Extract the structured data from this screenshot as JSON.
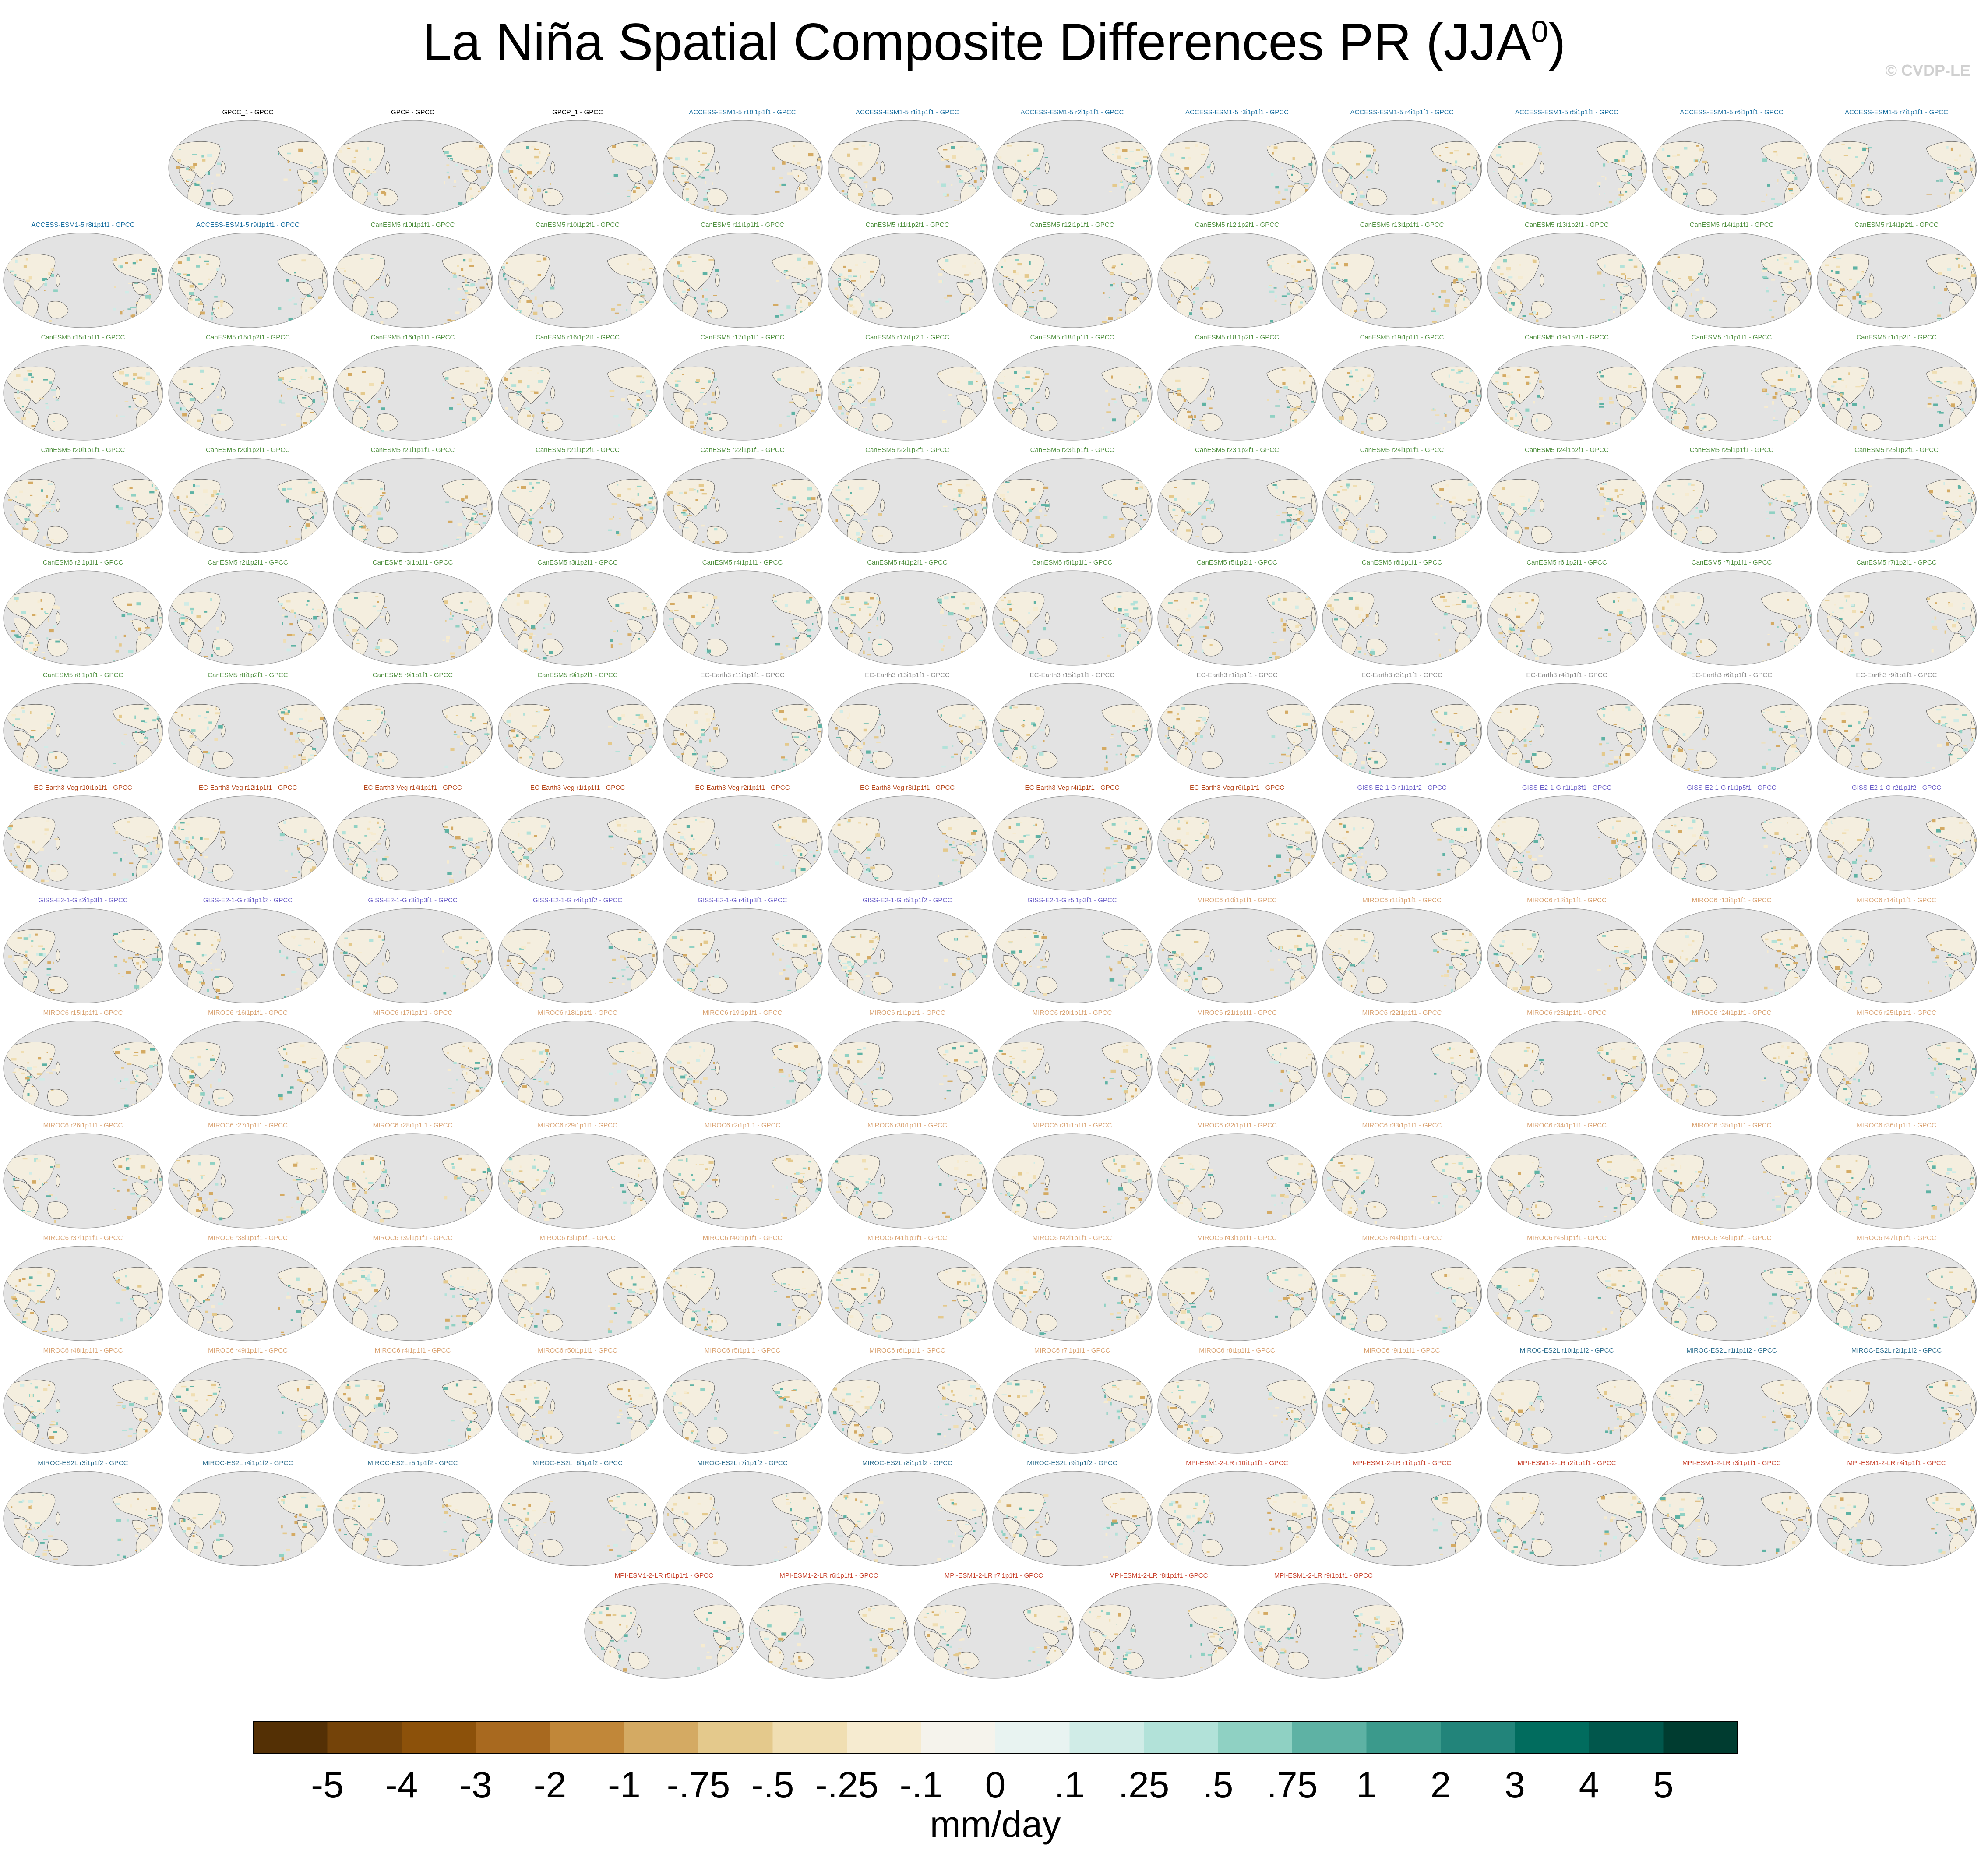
{
  "title": {
    "main": "La Niña Spatial Composite Differences PR (JJA",
    "sup": "0",
    "close": ")"
  },
  "copyright": "© CVDP-LE",
  "chart_data": {
    "type": "heatmap",
    "title": "La Niña Spatial Composite Differences PR (JJA0)",
    "colorbar": {
      "unit": "mm/day",
      "ticks": [
        "-5",
        "-4",
        "-3",
        "-2",
        "-1",
        "-.75",
        "-.5",
        "-.25",
        "-.1",
        "0",
        ".1",
        ".25",
        ".5",
        ".75",
        "1",
        "2",
        "3",
        "4",
        "5"
      ],
      "colors": [
        "#543005",
        "#744309",
        "#8c510a",
        "#a8691f",
        "#c18739",
        "#d4aa63",
        "#e4c98c",
        "#f0deb2",
        "#f6ebd0",
        "#f5f3ec",
        "#e8f3f1",
        "#d0ece7",
        "#b2e2d9",
        "#8fd1c3",
        "#5eb2a4",
        "#3b9a8c",
        "#22847a",
        "#016c5e",
        "#01574c",
        "#003c30"
      ]
    },
    "panel_groups": [
      {
        "model": "Obs",
        "color": "#000000",
        "titles": [
          "GPCC_1 - GPCC",
          "GPCP - GPCC",
          "GPCP_1 - GPCC"
        ]
      },
      {
        "model": "ACCESS-ESM1-5",
        "color": "#1a6fa0",
        "titles": [
          "ACCESS-ESM1-5 r10i1p1f1 - GPCC",
          "ACCESS-ESM1-5 r1i1p1f1 - GPCC",
          "ACCESS-ESM1-5 r2i1p1f1 - GPCC",
          "ACCESS-ESM1-5 r3i1p1f1 - GPCC",
          "ACCESS-ESM1-5 r4i1p1f1 - GPCC",
          "ACCESS-ESM1-5 r5i1p1f1 - GPCC",
          "ACCESS-ESM1-5 r6i1p1f1 - GPCC",
          "ACCESS-ESM1-5 r7i1p1f1 - GPCC",
          "ACCESS-ESM1-5 r8i1p1f1 - GPCC",
          "ACCESS-ESM1-5 r9i1p1f1 - GPCC"
        ]
      },
      {
        "model": "CanESM5",
        "color": "#4f8f3f",
        "titles": [
          "CanESM5 r10i1p1f1 - GPCC",
          "CanESM5 r10i1p2f1 - GPCC",
          "CanESM5 r11i1p1f1 - GPCC",
          "CanESM5 r11i1p2f1 - GPCC",
          "CanESM5 r12i1p1f1 - GPCC",
          "CanESM5 r12i1p2f1 - GPCC",
          "CanESM5 r13i1p1f1 - GPCC",
          "CanESM5 r13i1p2f1 - GPCC",
          "CanESM5 r14i1p1f1 - GPCC",
          "CanESM5 r14i1p2f1 - GPCC",
          "CanESM5 r15i1p1f1 - GPCC",
          "CanESM5 r15i1p2f1 - GPCC",
          "CanESM5 r16i1p1f1 - GPCC",
          "CanESM5 r16i1p2f1 - GPCC",
          "CanESM5 r17i1p1f1 - GPCC",
          "CanESM5 r17i1p2f1 - GPCC",
          "CanESM5 r18i1p1f1 - GPCC",
          "CanESM5 r18i1p2f1 - GPCC",
          "CanESM5 r19i1p1f1 - GPCC",
          "CanESM5 r19i1p2f1 - GPCC",
          "CanESM5 r1i1p1f1 - GPCC",
          "CanESM5 r1i1p2f1 - GPCC",
          "CanESM5 r20i1p1f1 - GPCC",
          "CanESM5 r20i1p2f1 - GPCC",
          "CanESM5 r21i1p1f1 - GPCC",
          "CanESM5 r21i1p2f1 - GPCC",
          "CanESM5 r22i1p1f1 - GPCC",
          "CanESM5 r22i1p2f1 - GPCC",
          "CanESM5 r23i1p1f1 - GPCC",
          "CanESM5 r23i1p2f1 - GPCC",
          "CanESM5 r24i1p1f1 - GPCC",
          "CanESM5 r24i1p2f1 - GPCC",
          "CanESM5 r25i1p1f1 - GPCC",
          "CanESM5 r25i1p2f1 - GPCC",
          "CanESM5 r2i1p1f1 - GPCC",
          "CanESM5 r2i1p2f1 - GPCC",
          "CanESM5 r3i1p1f1 - GPCC",
          "CanESM5 r3i1p2f1 - GPCC",
          "CanESM5 r4i1p1f1 - GPCC",
          "CanESM5 r4i1p2f1 - GPCC",
          "CanESM5 r5i1p1f1 - GPCC",
          "CanESM5 r5i1p2f1 - GPCC",
          "CanESM5 r6i1p1f1 - GPCC",
          "CanESM5 r6i1p2f1 - GPCC",
          "CanESM5 r7i1p1f1 - GPCC",
          "CanESM5 r7i1p2f1 - GPCC",
          "CanESM5 r8i1p1f1 - GPCC",
          "CanESM5 r8i1p2f1 - GPCC",
          "CanESM5 r9i1p1f1 - GPCC",
          "CanESM5 r9i1p2f1 - GPCC"
        ]
      },
      {
        "model": "EC-Earth3",
        "color": "#8a8a8a",
        "titles": [
          "EC-Earth3 r11i1p1f1 - GPCC",
          "EC-Earth3 r13i1p1f1 - GPCC",
          "EC-Earth3 r15i1p1f1 - GPCC",
          "EC-Earth3 r1i1p1f1 - GPCC",
          "EC-Earth3 r3i1p1f1 - GPCC",
          "EC-Earth3 r4i1p1f1 - GPCC",
          "EC-Earth3 r6i1p1f1 - GPCC",
          "EC-Earth3 r9i1p1f1 - GPCC"
        ]
      },
      {
        "model": "EC-Earth3-Veg",
        "color": "#b5471b",
        "titles": [
          "EC-Earth3-Veg r10i1p1f1 - GPCC",
          "EC-Earth3-Veg r12i1p1f1 - GPCC",
          "EC-Earth3-Veg r14i1p1f1 - GPCC",
          "EC-Earth3-Veg r1i1p1f1 - GPCC",
          "EC-Earth3-Veg r2i1p1f1 - GPCC",
          "EC-Earth3-Veg r3i1p1f1 - GPCC",
          "EC-Earth3-Veg r4i1p1f1 - GPCC",
          "EC-Earth3-Veg r6i1p1f1 - GPCC"
        ]
      },
      {
        "model": "GISS-E2-1-G",
        "color": "#6b5fc7",
        "titles": [
          "GISS-E2-1-G r1i1p1f2 - GPCC",
          "GISS-E2-1-G r1i1p3f1 - GPCC",
          "GISS-E2-1-G r1i1p5f1 - GPCC",
          "GISS-E2-1-G r2i1p1f2 - GPCC",
          "GISS-E2-1-G r2i1p3f1 - GPCC",
          "GISS-E2-1-G r3i1p1f2 - GPCC",
          "GISS-E2-1-G r3i1p3f1 - GPCC",
          "GISS-E2-1-G r4i1p1f2 - GPCC",
          "GISS-E2-1-G r4i1p3f1 - GPCC",
          "GISS-E2-1-G r5i1p1f2 - GPCC",
          "GISS-E2-1-G r5i1p3f1 - GPCC"
        ]
      },
      {
        "model": "MIROC6",
        "color": "#d9a373",
        "titles": [
          "MIROC6 r10i1p1f1 - GPCC",
          "MIROC6 r11i1p1f1 - GPCC",
          "MIROC6 r12i1p1f1 - GPCC",
          "MIROC6 r13i1p1f1 - GPCC",
          "MIROC6 r14i1p1f1 - GPCC",
          "MIROC6 r15i1p1f1 - GPCC",
          "MIROC6 r16i1p1f1 - GPCC",
          "MIROC6 r17i1p1f1 - GPCC",
          "MIROC6 r18i1p1f1 - GPCC",
          "MIROC6 r19i1p1f1 - GPCC",
          "MIROC6 r1i1p1f1 - GPCC",
          "MIROC6 r20i1p1f1 - GPCC",
          "MIROC6 r21i1p1f1 - GPCC",
          "MIROC6 r22i1p1f1 - GPCC",
          "MIROC6 r23i1p1f1 - GPCC",
          "MIROC6 r24i1p1f1 - GPCC",
          "MIROC6 r25i1p1f1 - GPCC",
          "MIROC6 r26i1p1f1 - GPCC",
          "MIROC6 r27i1p1f1 - GPCC",
          "MIROC6 r28i1p1f1 - GPCC",
          "MIROC6 r29i1p1f1 - GPCC",
          "MIROC6 r2i1p1f1 - GPCC",
          "MIROC6 r30i1p1f1 - GPCC",
          "MIROC6 r31i1p1f1 - GPCC",
          "MIROC6 r32i1p1f1 - GPCC",
          "MIROC6 r33i1p1f1 - GPCC",
          "MIROC6 r34i1p1f1 - GPCC",
          "MIROC6 r35i1p1f1 - GPCC",
          "MIROC6 r36i1p1f1 - GPCC",
          "MIROC6 r37i1p1f1 - GPCC",
          "MIROC6 r38i1p1f1 - GPCC",
          "MIROC6 r39i1p1f1 - GPCC",
          "MIROC6 r3i1p1f1 - GPCC",
          "MIROC6 r40i1p1f1 - GPCC",
          "MIROC6 r41i1p1f1 - GPCC",
          "MIROC6 r42i1p1f1 - GPCC",
          "MIROC6 r43i1p1f1 - GPCC",
          "MIROC6 r44i1p1f1 - GPCC",
          "MIROC6 r45i1p1f1 - GPCC",
          "MIROC6 r46i1p1f1 - GPCC",
          "MIROC6 r47i1p1f1 - GPCC",
          "MIROC6 r48i1p1f1 - GPCC",
          "MIROC6 r49i1p1f1 - GPCC",
          "MIROC6 r4i1p1f1 - GPCC",
          "MIROC6 r50i1p1f1 - GPCC",
          "MIROC6 r5i1p1f1 - GPCC",
          "MIROC6 r6i1p1f1 - GPCC",
          "MIROC6 r7i1p1f1 - GPCC",
          "MIROC6 r8i1p1f1 - GPCC",
          "MIROC6 r9i1p1f1 - GPCC"
        ]
      },
      {
        "model": "MIROC-ES2L",
        "color": "#2f6f8f",
        "titles": [
          "MIROC-ES2L r10i1p1f2 - GPCC",
          "MIROC-ES2L r1i1p1f2 - GPCC",
          "MIROC-ES2L r2i1p1f2 - GPCC",
          "MIROC-ES2L r3i1p1f2 - GPCC",
          "MIROC-ES2L r4i1p1f2 - GPCC",
          "MIROC-ES2L r5i1p1f2 - GPCC",
          "MIROC-ES2L r6i1p1f2 - GPCC",
          "MIROC-ES2L r7i1p1f2 - GPCC",
          "MIROC-ES2L r8i1p1f2 - GPCC",
          "MIROC-ES2L r9i1p1f2 - GPCC"
        ]
      },
      {
        "model": "MPI-ESM1-2-LR",
        "color": "#c8402a",
        "titles": [
          "MPI-ESM1-2-LR r10i1p1f1 - GPCC",
          "MPI-ESM1-2-LR r1i1p1f1 - GPCC",
          "MPI-ESM1-2-LR r2i1p1f1 - GPCC",
          "MPI-ESM1-2-LR r3i1p1f1 - GPCC",
          "MPI-ESM1-2-LR r4i1p1f1 - GPCC",
          "MPI-ESM1-2-LR r5i1p1f1 - GPCC",
          "MPI-ESM1-2-LR r6i1p1f1 - GPCC",
          "MPI-ESM1-2-LR r7i1p1f1 - GPCC",
          "MPI-ESM1-2-LR r8i1p1f1 - GPCC",
          "MPI-ESM1-2-LR r9i1p1f1 - GPCC"
        ]
      }
    ]
  }
}
